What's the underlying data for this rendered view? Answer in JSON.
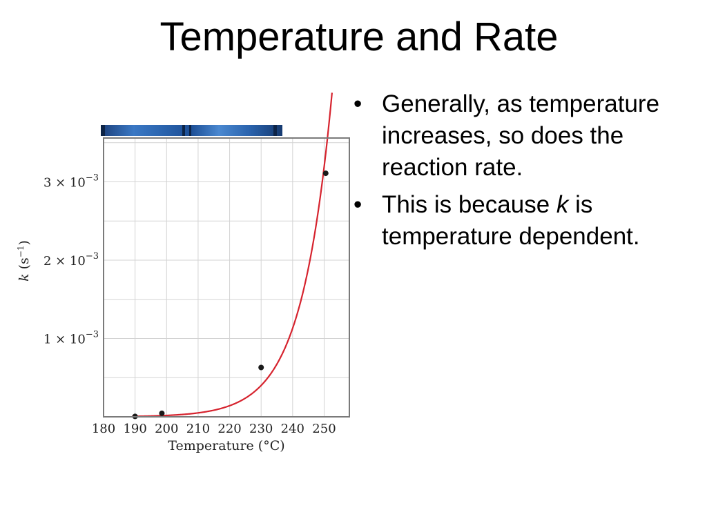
{
  "slide": {
    "title": "Temperature and Rate",
    "bullet_symbol": "•",
    "bullets": [
      {
        "text": "Generally, as temperature increases, so does the reaction rate."
      },
      {
        "before": "This is because ",
        "italic": "k",
        "after": " is temperature dependent."
      }
    ]
  },
  "colors": {
    "curve": "#d6232e",
    "points": "#1a1a1a",
    "grid": "#d3d3d3",
    "frame": "#7a7a7a",
    "strip": "#2a63ad"
  },
  "chart_data": {
    "type": "line",
    "title": "",
    "xlabel": "Temperature (°C)",
    "ylabel": {
      "italic": "k",
      "rest": " (s",
      "sup": "−1",
      "close": ")"
    },
    "xlim": [
      180,
      258
    ],
    "ylim": [
      0,
      0.00356
    ],
    "x_ticks": [
      180,
      190,
      200,
      210,
      220,
      230,
      240,
      250
    ],
    "x_tick_labels": [
      "180",
      "190",
      "200",
      "210",
      "220",
      "230",
      "240",
      "250"
    ],
    "y_ticks": [
      0.001,
      0.002,
      0.003
    ],
    "y_tick_labels": [
      {
        "mant": "1 × 10",
        "exp": "−3"
      },
      {
        "mant": "2 × 10",
        "exp": "−3"
      },
      {
        "mant": "3 × 10",
        "exp": "−3"
      }
    ],
    "grid": true,
    "series": [
      {
        "kind": "fit",
        "model": "exponential",
        "a": 6.3e-06,
        "b": 0.1038,
        "x0": 190,
        "x_range": [
          189,
          252.5
        ]
      },
      {
        "kind": "points",
        "x": [
          190,
          198.5,
          230,
          250.5
        ],
        "y": [
          5e-06,
          4.5e-05,
          0.00063,
          0.00311
        ]
      }
    ]
  }
}
